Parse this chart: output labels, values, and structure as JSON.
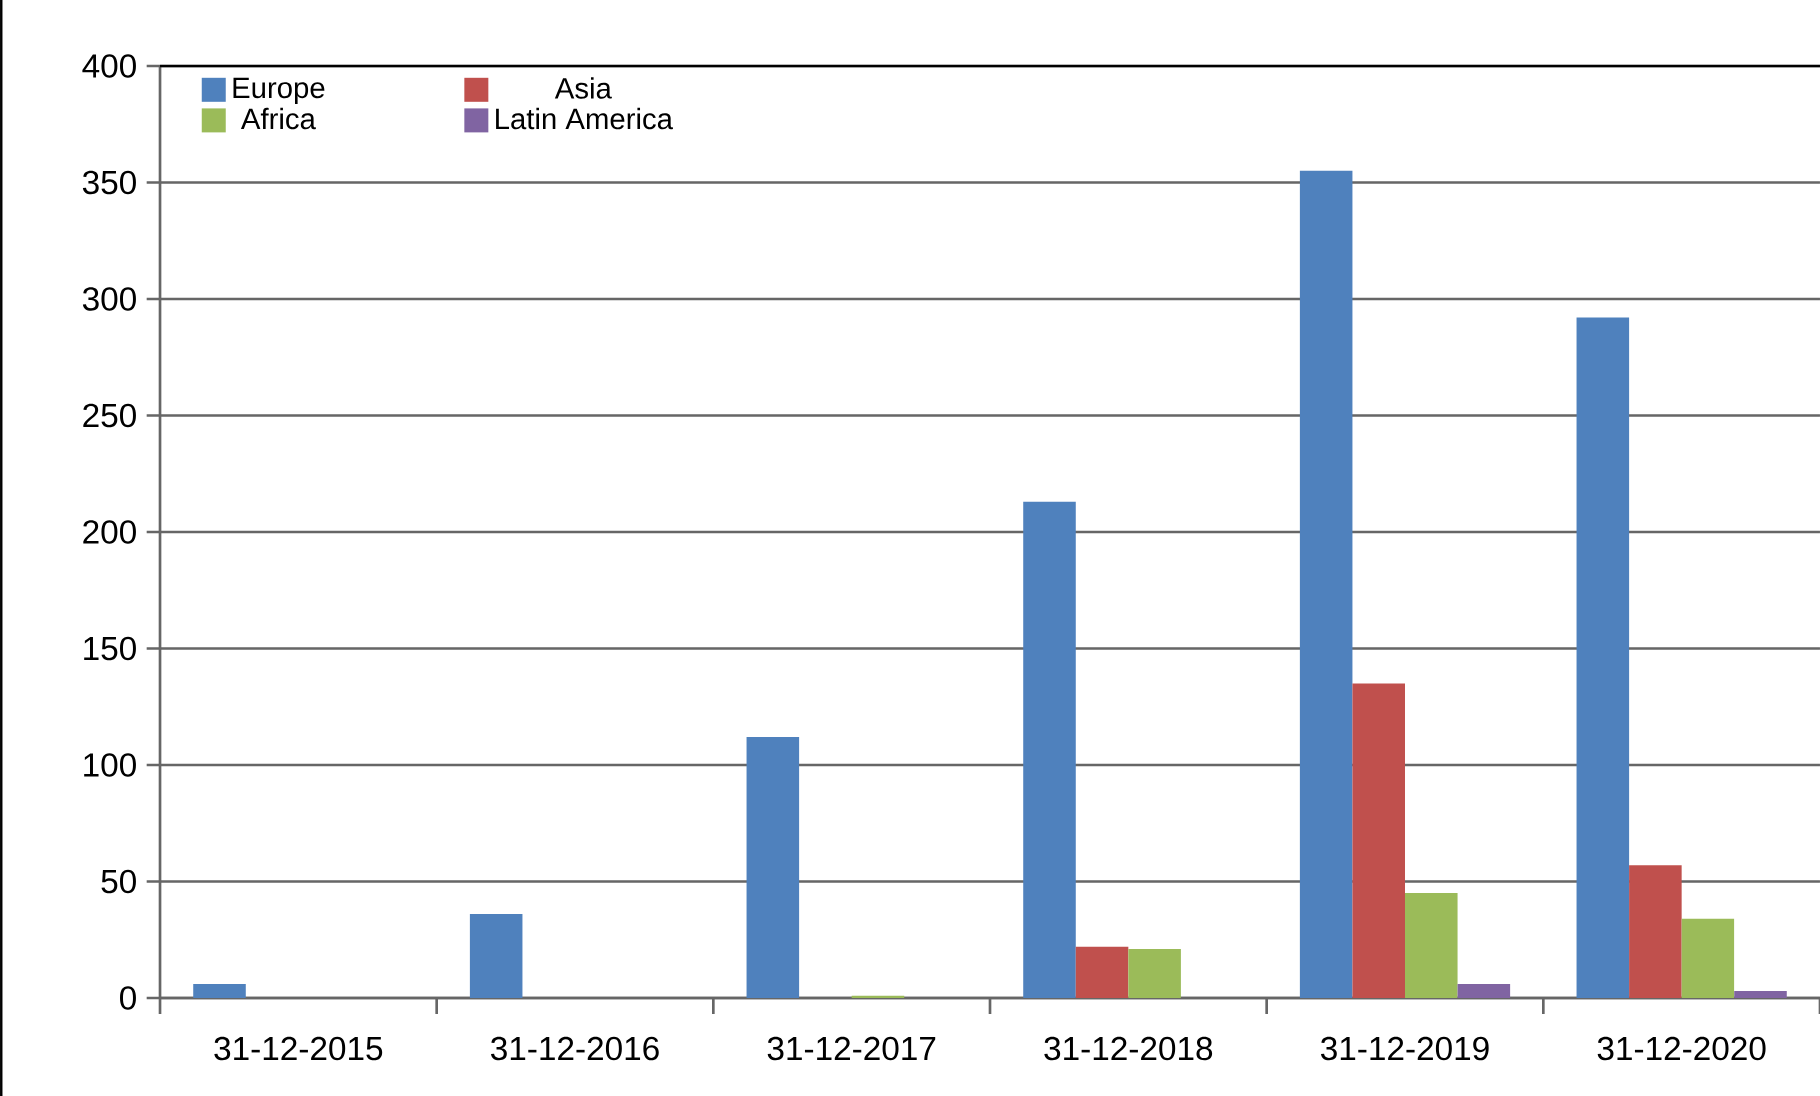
{
  "chart_data": {
    "type": "bar",
    "categories": [
      "31-12-2015",
      "31-12-2016",
      "31-12-2017",
      "31-12-2018",
      "31-12-2019",
      "31-12-2020"
    ],
    "series": [
      {
        "name": "Europe",
        "color": "#4f81bd",
        "values": [
          6,
          36,
          112,
          213,
          355,
          292
        ]
      },
      {
        "name": "Asia",
        "color": "#c0504d",
        "values": [
          0,
          0,
          0,
          22,
          135,
          57
        ]
      },
      {
        "name": "Africa",
        "color": "#9bbb59",
        "values": [
          0,
          0,
          1,
          21,
          45,
          34
        ]
      },
      {
        "name": "Latin America",
        "color": "#8064a2",
        "values": [
          0,
          0,
          0,
          0,
          6,
          3
        ]
      }
    ],
    "ylim": [
      0,
      400
    ],
    "yticks": [
      0,
      50,
      100,
      150,
      200,
      250,
      300,
      350,
      400
    ],
    "grid": "y",
    "legend": "top left"
  }
}
